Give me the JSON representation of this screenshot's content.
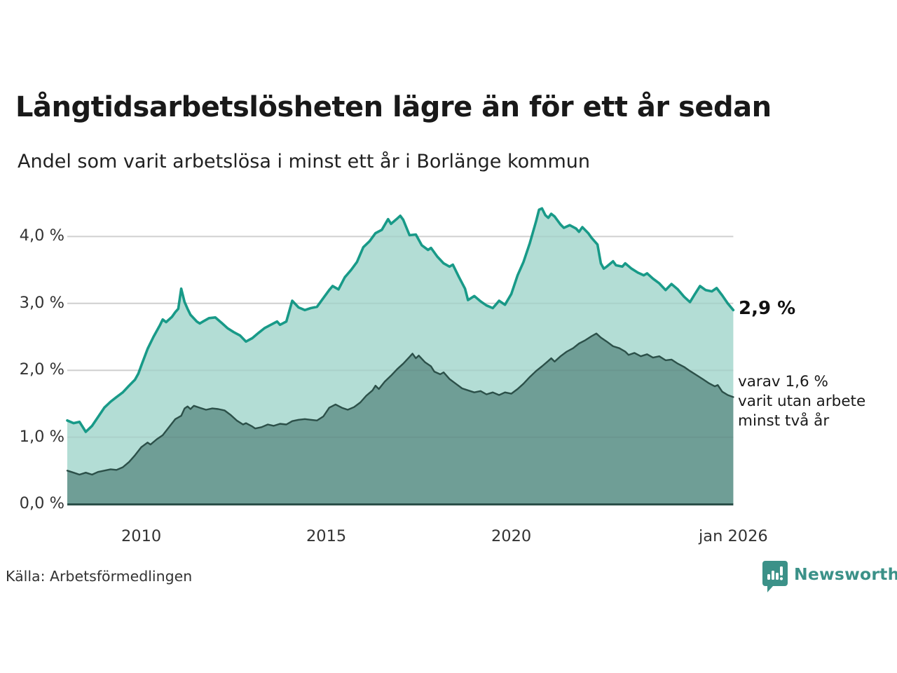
{
  "chart_data": {
    "type": "area",
    "title": "Långtidsarbetslösheten lägre än för ett år sedan",
    "subtitle": "Andel som varit arbetslösa i minst ett år i Borlänge kommun",
    "x_range": [
      2008.0,
      2026.0
    ],
    "ylim": [
      0,
      4.6
    ],
    "grid": true,
    "grid_color": "#dcdcdc",
    "axis_line_color": "#2b4f49",
    "y_ticks": [
      {
        "value": 0.0,
        "label": "0,0 %"
      },
      {
        "value": 1.0,
        "label": "1,0 %"
      },
      {
        "value": 2.0,
        "label": "2,0 %"
      },
      {
        "value": 3.0,
        "label": "3,0 %"
      },
      {
        "value": 4.0,
        "label": "4,0 %"
      }
    ],
    "x_ticks": [
      {
        "year": 2010,
        "label": "2010"
      },
      {
        "year": 2015,
        "label": "2015"
      },
      {
        "year": 2020,
        "label": "2020"
      },
      {
        "year": 2026,
        "label": "jan 2026"
      }
    ],
    "annotations": {
      "latest_total": "2,9 %",
      "latest_sub_lines": [
        "varav 1,6 %",
        "varit utan arbete",
        "minst två år"
      ]
    },
    "series": [
      {
        "name": "Arbetslösa minst ett år",
        "latest_value": 2.9,
        "line_color": "#189a88",
        "fill_color": "#b3ddd5",
        "line_width": 3.6,
        "points": [
          [
            2008.0,
            1.25
          ],
          [
            2008.17,
            1.21
          ],
          [
            2008.33,
            1.23
          ],
          [
            2008.5,
            1.08
          ],
          [
            2008.67,
            1.17
          ],
          [
            2008.83,
            1.3
          ],
          [
            2009.0,
            1.44
          ],
          [
            2009.17,
            1.53
          ],
          [
            2009.33,
            1.6
          ],
          [
            2009.5,
            1.67
          ],
          [
            2009.67,
            1.77
          ],
          [
            2009.83,
            1.86
          ],
          [
            2009.92,
            1.95
          ],
          [
            2010.0,
            2.07
          ],
          [
            2010.17,
            2.32
          ],
          [
            2010.33,
            2.5
          ],
          [
            2010.5,
            2.67
          ],
          [
            2010.58,
            2.76
          ],
          [
            2010.67,
            2.72
          ],
          [
            2010.83,
            2.8
          ],
          [
            2010.92,
            2.87
          ],
          [
            2011.0,
            2.92
          ],
          [
            2011.08,
            3.22
          ],
          [
            2011.17,
            3.02
          ],
          [
            2011.25,
            2.92
          ],
          [
            2011.33,
            2.83
          ],
          [
            2011.5,
            2.73
          ],
          [
            2011.58,
            2.7
          ],
          [
            2011.67,
            2.73
          ],
          [
            2011.83,
            2.78
          ],
          [
            2012.0,
            2.79
          ],
          [
            2012.17,
            2.71
          ],
          [
            2012.33,
            2.63
          ],
          [
            2012.5,
            2.57
          ],
          [
            2012.67,
            2.52
          ],
          [
            2012.83,
            2.43
          ],
          [
            2013.0,
            2.48
          ],
          [
            2013.17,
            2.56
          ],
          [
            2013.33,
            2.63
          ],
          [
            2013.5,
            2.68
          ],
          [
            2013.67,
            2.73
          ],
          [
            2013.75,
            2.68
          ],
          [
            2013.92,
            2.73
          ],
          [
            2014.08,
            3.04
          ],
          [
            2014.25,
            2.94
          ],
          [
            2014.42,
            2.9
          ],
          [
            2014.58,
            2.93
          ],
          [
            2014.75,
            2.95
          ],
          [
            2014.92,
            3.08
          ],
          [
            2015.08,
            3.2
          ],
          [
            2015.17,
            3.26
          ],
          [
            2015.33,
            3.21
          ],
          [
            2015.5,
            3.39
          ],
          [
            2015.67,
            3.5
          ],
          [
            2015.83,
            3.62
          ],
          [
            2016.0,
            3.84
          ],
          [
            2016.17,
            3.93
          ],
          [
            2016.33,
            4.05
          ],
          [
            2016.5,
            4.1
          ],
          [
            2016.67,
            4.26
          ],
          [
            2016.75,
            4.19
          ],
          [
            2016.92,
            4.27
          ],
          [
            2017.0,
            4.31
          ],
          [
            2017.08,
            4.25
          ],
          [
            2017.25,
            4.02
          ],
          [
            2017.42,
            4.03
          ],
          [
            2017.58,
            3.87
          ],
          [
            2017.75,
            3.8
          ],
          [
            2017.83,
            3.83
          ],
          [
            2018.0,
            3.7
          ],
          [
            2018.17,
            3.6
          ],
          [
            2018.33,
            3.55
          ],
          [
            2018.42,
            3.58
          ],
          [
            2018.58,
            3.4
          ],
          [
            2018.75,
            3.22
          ],
          [
            2018.83,
            3.05
          ],
          [
            2019.0,
            3.11
          ],
          [
            2019.17,
            3.03
          ],
          [
            2019.33,
            2.97
          ],
          [
            2019.5,
            2.93
          ],
          [
            2019.58,
            2.98
          ],
          [
            2019.67,
            3.04
          ],
          [
            2019.83,
            2.98
          ],
          [
            2020.0,
            3.14
          ],
          [
            2020.17,
            3.42
          ],
          [
            2020.33,
            3.62
          ],
          [
            2020.5,
            3.9
          ],
          [
            2020.67,
            4.23
          ],
          [
            2020.75,
            4.4
          ],
          [
            2020.83,
            4.42
          ],
          [
            2020.92,
            4.32
          ],
          [
            2021.0,
            4.28
          ],
          [
            2021.08,
            4.34
          ],
          [
            2021.17,
            4.3
          ],
          [
            2021.33,
            4.18
          ],
          [
            2021.42,
            4.13
          ],
          [
            2021.58,
            4.17
          ],
          [
            2021.75,
            4.12
          ],
          [
            2021.83,
            4.07
          ],
          [
            2021.92,
            4.14
          ],
          [
            2022.08,
            4.05
          ],
          [
            2022.17,
            3.98
          ],
          [
            2022.33,
            3.88
          ],
          [
            2022.42,
            3.6
          ],
          [
            2022.5,
            3.52
          ],
          [
            2022.58,
            3.55
          ],
          [
            2022.75,
            3.63
          ],
          [
            2022.83,
            3.57
          ],
          [
            2023.0,
            3.55
          ],
          [
            2023.08,
            3.6
          ],
          [
            2023.25,
            3.52
          ],
          [
            2023.42,
            3.46
          ],
          [
            2023.58,
            3.42
          ],
          [
            2023.67,
            3.45
          ],
          [
            2023.83,
            3.37
          ],
          [
            2024.0,
            3.3
          ],
          [
            2024.17,
            3.2
          ],
          [
            2024.33,
            3.29
          ],
          [
            2024.5,
            3.21
          ],
          [
            2024.67,
            3.1
          ],
          [
            2024.83,
            3.02
          ],
          [
            2024.95,
            3.13
          ],
          [
            2025.1,
            3.26
          ],
          [
            2025.25,
            3.2
          ],
          [
            2025.42,
            3.18
          ],
          [
            2025.55,
            3.23
          ],
          [
            2025.7,
            3.12
          ],
          [
            2025.85,
            3.0
          ],
          [
            2026.0,
            2.9
          ]
        ]
      },
      {
        "name": "Utan arbete minst två år",
        "latest_value": 1.6,
        "line_color": "#2c5049",
        "fill_color": "#6f9e96",
        "line_width": 2.4,
        "points": [
          [
            2008.0,
            0.5
          ],
          [
            2008.17,
            0.47
          ],
          [
            2008.33,
            0.44
          ],
          [
            2008.5,
            0.47
          ],
          [
            2008.67,
            0.44
          ],
          [
            2008.83,
            0.48
          ],
          [
            2009.0,
            0.5
          ],
          [
            2009.17,
            0.52
          ],
          [
            2009.33,
            0.51
          ],
          [
            2009.5,
            0.55
          ],
          [
            2009.67,
            0.63
          ],
          [
            2009.83,
            0.73
          ],
          [
            2010.0,
            0.85
          ],
          [
            2010.17,
            0.92
          ],
          [
            2010.25,
            0.89
          ],
          [
            2010.42,
            0.97
          ],
          [
            2010.58,
            1.03
          ],
          [
            2010.75,
            1.15
          ],
          [
            2010.92,
            1.27
          ],
          [
            2011.08,
            1.32
          ],
          [
            2011.17,
            1.43
          ],
          [
            2011.25,
            1.46
          ],
          [
            2011.33,
            1.42
          ],
          [
            2011.42,
            1.47
          ],
          [
            2011.58,
            1.44
          ],
          [
            2011.75,
            1.41
          ],
          [
            2011.92,
            1.43
          ],
          [
            2012.08,
            1.42
          ],
          [
            2012.25,
            1.4
          ],
          [
            2012.42,
            1.33
          ],
          [
            2012.58,
            1.25
          ],
          [
            2012.75,
            1.19
          ],
          [
            2012.83,
            1.21
          ],
          [
            2013.0,
            1.16
          ],
          [
            2013.08,
            1.13
          ],
          [
            2013.25,
            1.15
          ],
          [
            2013.42,
            1.19
          ],
          [
            2013.58,
            1.17
          ],
          [
            2013.75,
            1.2
          ],
          [
            2013.92,
            1.19
          ],
          [
            2014.08,
            1.24
          ],
          [
            2014.25,
            1.26
          ],
          [
            2014.42,
            1.27
          ],
          [
            2014.58,
            1.26
          ],
          [
            2014.75,
            1.25
          ],
          [
            2014.92,
            1.31
          ],
          [
            2015.08,
            1.44
          ],
          [
            2015.25,
            1.49
          ],
          [
            2015.42,
            1.44
          ],
          [
            2015.58,
            1.41
          ],
          [
            2015.75,
            1.45
          ],
          [
            2015.92,
            1.52
          ],
          [
            2016.08,
            1.62
          ],
          [
            2016.25,
            1.7
          ],
          [
            2016.33,
            1.77
          ],
          [
            2016.42,
            1.72
          ],
          [
            2016.58,
            1.83
          ],
          [
            2016.75,
            1.92
          ],
          [
            2016.92,
            2.02
          ],
          [
            2017.08,
            2.1
          ],
          [
            2017.25,
            2.2
          ],
          [
            2017.33,
            2.25
          ],
          [
            2017.42,
            2.18
          ],
          [
            2017.5,
            2.22
          ],
          [
            2017.67,
            2.12
          ],
          [
            2017.83,
            2.06
          ],
          [
            2017.92,
            1.98
          ],
          [
            2018.08,
            1.94
          ],
          [
            2018.17,
            1.97
          ],
          [
            2018.33,
            1.87
          ],
          [
            2018.5,
            1.8
          ],
          [
            2018.67,
            1.73
          ],
          [
            2018.83,
            1.7
          ],
          [
            2019.0,
            1.67
          ],
          [
            2019.17,
            1.69
          ],
          [
            2019.33,
            1.64
          ],
          [
            2019.5,
            1.67
          ],
          [
            2019.67,
            1.63
          ],
          [
            2019.83,
            1.67
          ],
          [
            2020.0,
            1.65
          ],
          [
            2020.17,
            1.72
          ],
          [
            2020.33,
            1.8
          ],
          [
            2020.5,
            1.9
          ],
          [
            2020.67,
            1.99
          ],
          [
            2020.83,
            2.06
          ],
          [
            2021.0,
            2.14
          ],
          [
            2021.08,
            2.18
          ],
          [
            2021.17,
            2.13
          ],
          [
            2021.33,
            2.21
          ],
          [
            2021.5,
            2.28
          ],
          [
            2021.67,
            2.33
          ],
          [
            2021.83,
            2.4
          ],
          [
            2022.0,
            2.45
          ],
          [
            2022.17,
            2.51
          ],
          [
            2022.3,
            2.55
          ],
          [
            2022.42,
            2.49
          ],
          [
            2022.58,
            2.43
          ],
          [
            2022.75,
            2.36
          ],
          [
            2022.92,
            2.33
          ],
          [
            2023.08,
            2.28
          ],
          [
            2023.17,
            2.23
          ],
          [
            2023.33,
            2.26
          ],
          [
            2023.5,
            2.21
          ],
          [
            2023.67,
            2.24
          ],
          [
            2023.83,
            2.19
          ],
          [
            2024.0,
            2.21
          ],
          [
            2024.17,
            2.15
          ],
          [
            2024.33,
            2.16
          ],
          [
            2024.5,
            2.1
          ],
          [
            2024.67,
            2.05
          ],
          [
            2024.83,
            1.99
          ],
          [
            2025.0,
            1.93
          ],
          [
            2025.17,
            1.87
          ],
          [
            2025.33,
            1.81
          ],
          [
            2025.5,
            1.76
          ],
          [
            2025.58,
            1.78
          ],
          [
            2025.7,
            1.68
          ],
          [
            2025.85,
            1.63
          ],
          [
            2026.0,
            1.6
          ]
        ]
      }
    ]
  },
  "footer": {
    "source": "Källa: Arbetsförmedlingen",
    "brand": {
      "name": "Newsworthy",
      "icon": "bar-chart-speech-bubble-icon",
      "color": "#3b9188"
    }
  }
}
